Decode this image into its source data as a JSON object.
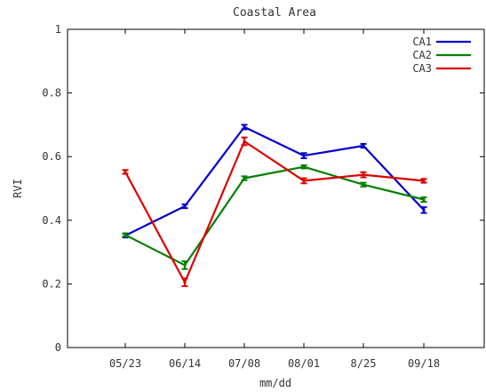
{
  "chart_data": {
    "type": "line",
    "title": "Coastal Area",
    "xlabel": "mm/dd",
    "ylabel": "RVI",
    "categories": [
      "05/23",
      "06/14",
      "07/08",
      "08/01",
      "8/25",
      "09/18"
    ],
    "ylim": [
      0,
      1
    ],
    "yticks": [
      "0",
      "0.2",
      "0.4",
      "0.6",
      "0.8",
      "1"
    ],
    "legend_position": "top-right",
    "error_bars": true,
    "series": [
      {
        "name": "CA1",
        "color": "#0000cc",
        "values": [
          0.352,
          0.444,
          0.693,
          0.603,
          0.634,
          0.432
        ],
        "errors": [
          0.006,
          0.006,
          0.007,
          0.008,
          0.006,
          0.009
        ]
      },
      {
        "name": "CA2",
        "color": "#008000",
        "values": [
          0.354,
          0.259,
          0.532,
          0.568,
          0.512,
          0.465
        ],
        "errors": [
          0.005,
          0.012,
          0.006,
          0.005,
          0.006,
          0.007
        ]
      },
      {
        "name": "CA3",
        "color": "#dd0000",
        "values": [
          0.552,
          0.205,
          0.648,
          0.524,
          0.543,
          0.524
        ],
        "errors": [
          0.006,
          0.012,
          0.012,
          0.008,
          0.008,
          0.006
        ]
      }
    ]
  }
}
